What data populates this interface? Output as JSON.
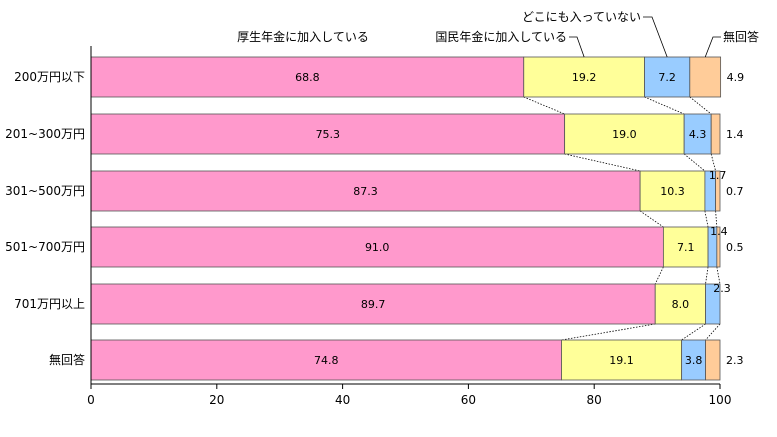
{
  "chart_data": {
    "type": "bar",
    "orientation": "horizontal",
    "stacked": true,
    "categories": [
      "200万円以下",
      "201~300万円",
      "301~500万円",
      "501~700万円",
      "701万円以上",
      "無回答"
    ],
    "series": [
      {
        "name": "厚生年金に加入している",
        "color": "#ff99cc",
        "values": [
          68.8,
          75.3,
          87.3,
          91.0,
          89.7,
          74.8
        ]
      },
      {
        "name": "国民年金に加入している",
        "color": "#ffff99",
        "values": [
          19.2,
          19.0,
          10.3,
          7.1,
          8.0,
          19.1
        ]
      },
      {
        "name": "どこにも入っていない",
        "color": "#99ccff",
        "values": [
          7.2,
          4.3,
          1.7,
          1.4,
          2.3,
          3.8
        ]
      },
      {
        "name": "無回答",
        "color": "#ffcc99",
        "values": [
          4.9,
          1.4,
          0.7,
          0.5,
          0.0,
          2.3
        ]
      }
    ],
    "value_labels": [
      [
        "68.8",
        "19.2",
        "7.2",
        "4.9"
      ],
      [
        "75.3",
        "19.0",
        "4.3",
        "1.4"
      ],
      [
        "87.3",
        "10.3",
        "1.7",
        "0.7"
      ],
      [
        "91.0",
        "7.1",
        "1.4",
        "0.5"
      ],
      [
        "89.7",
        "8.0",
        "2.3",
        ""
      ],
      [
        "74.8",
        "19.1",
        "3.8",
        "2.3"
      ]
    ],
    "xlim": [
      0,
      100
    ],
    "xticks": [
      "0",
      "20",
      "40",
      "60",
      "80",
      "100"
    ],
    "grid": false,
    "legend": "callouts-top"
  }
}
